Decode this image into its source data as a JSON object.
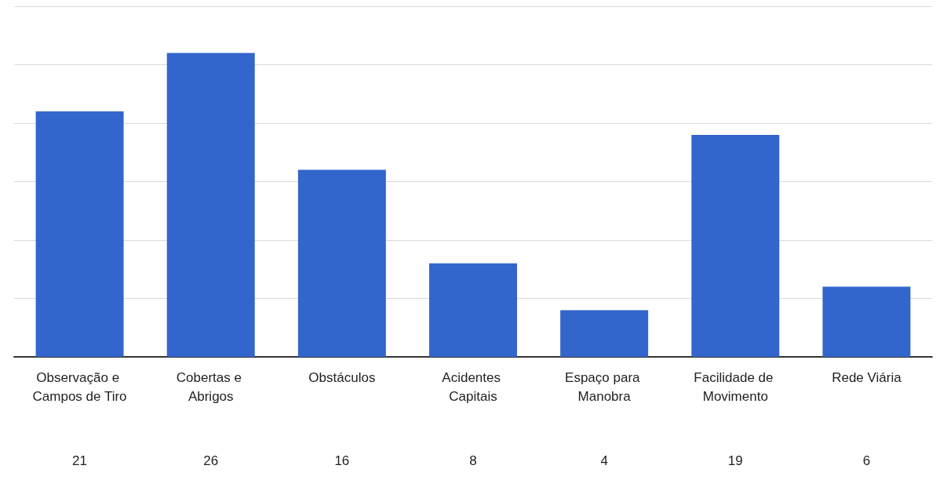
{
  "chart_data": {
    "type": "bar",
    "categories": [
      "Observação e Campos de Tiro",
      "Cobertas e Abrigos",
      "Obstáculos",
      "Acidentes Capitais",
      "Espaço para Manobra",
      "Facilidade de Movimento",
      "Rede Viária"
    ],
    "values": [
      21,
      26,
      16,
      8,
      4,
      19,
      6
    ],
    "color": "#3366cc",
    "data_labels": true,
    "grid": "y"
  }
}
